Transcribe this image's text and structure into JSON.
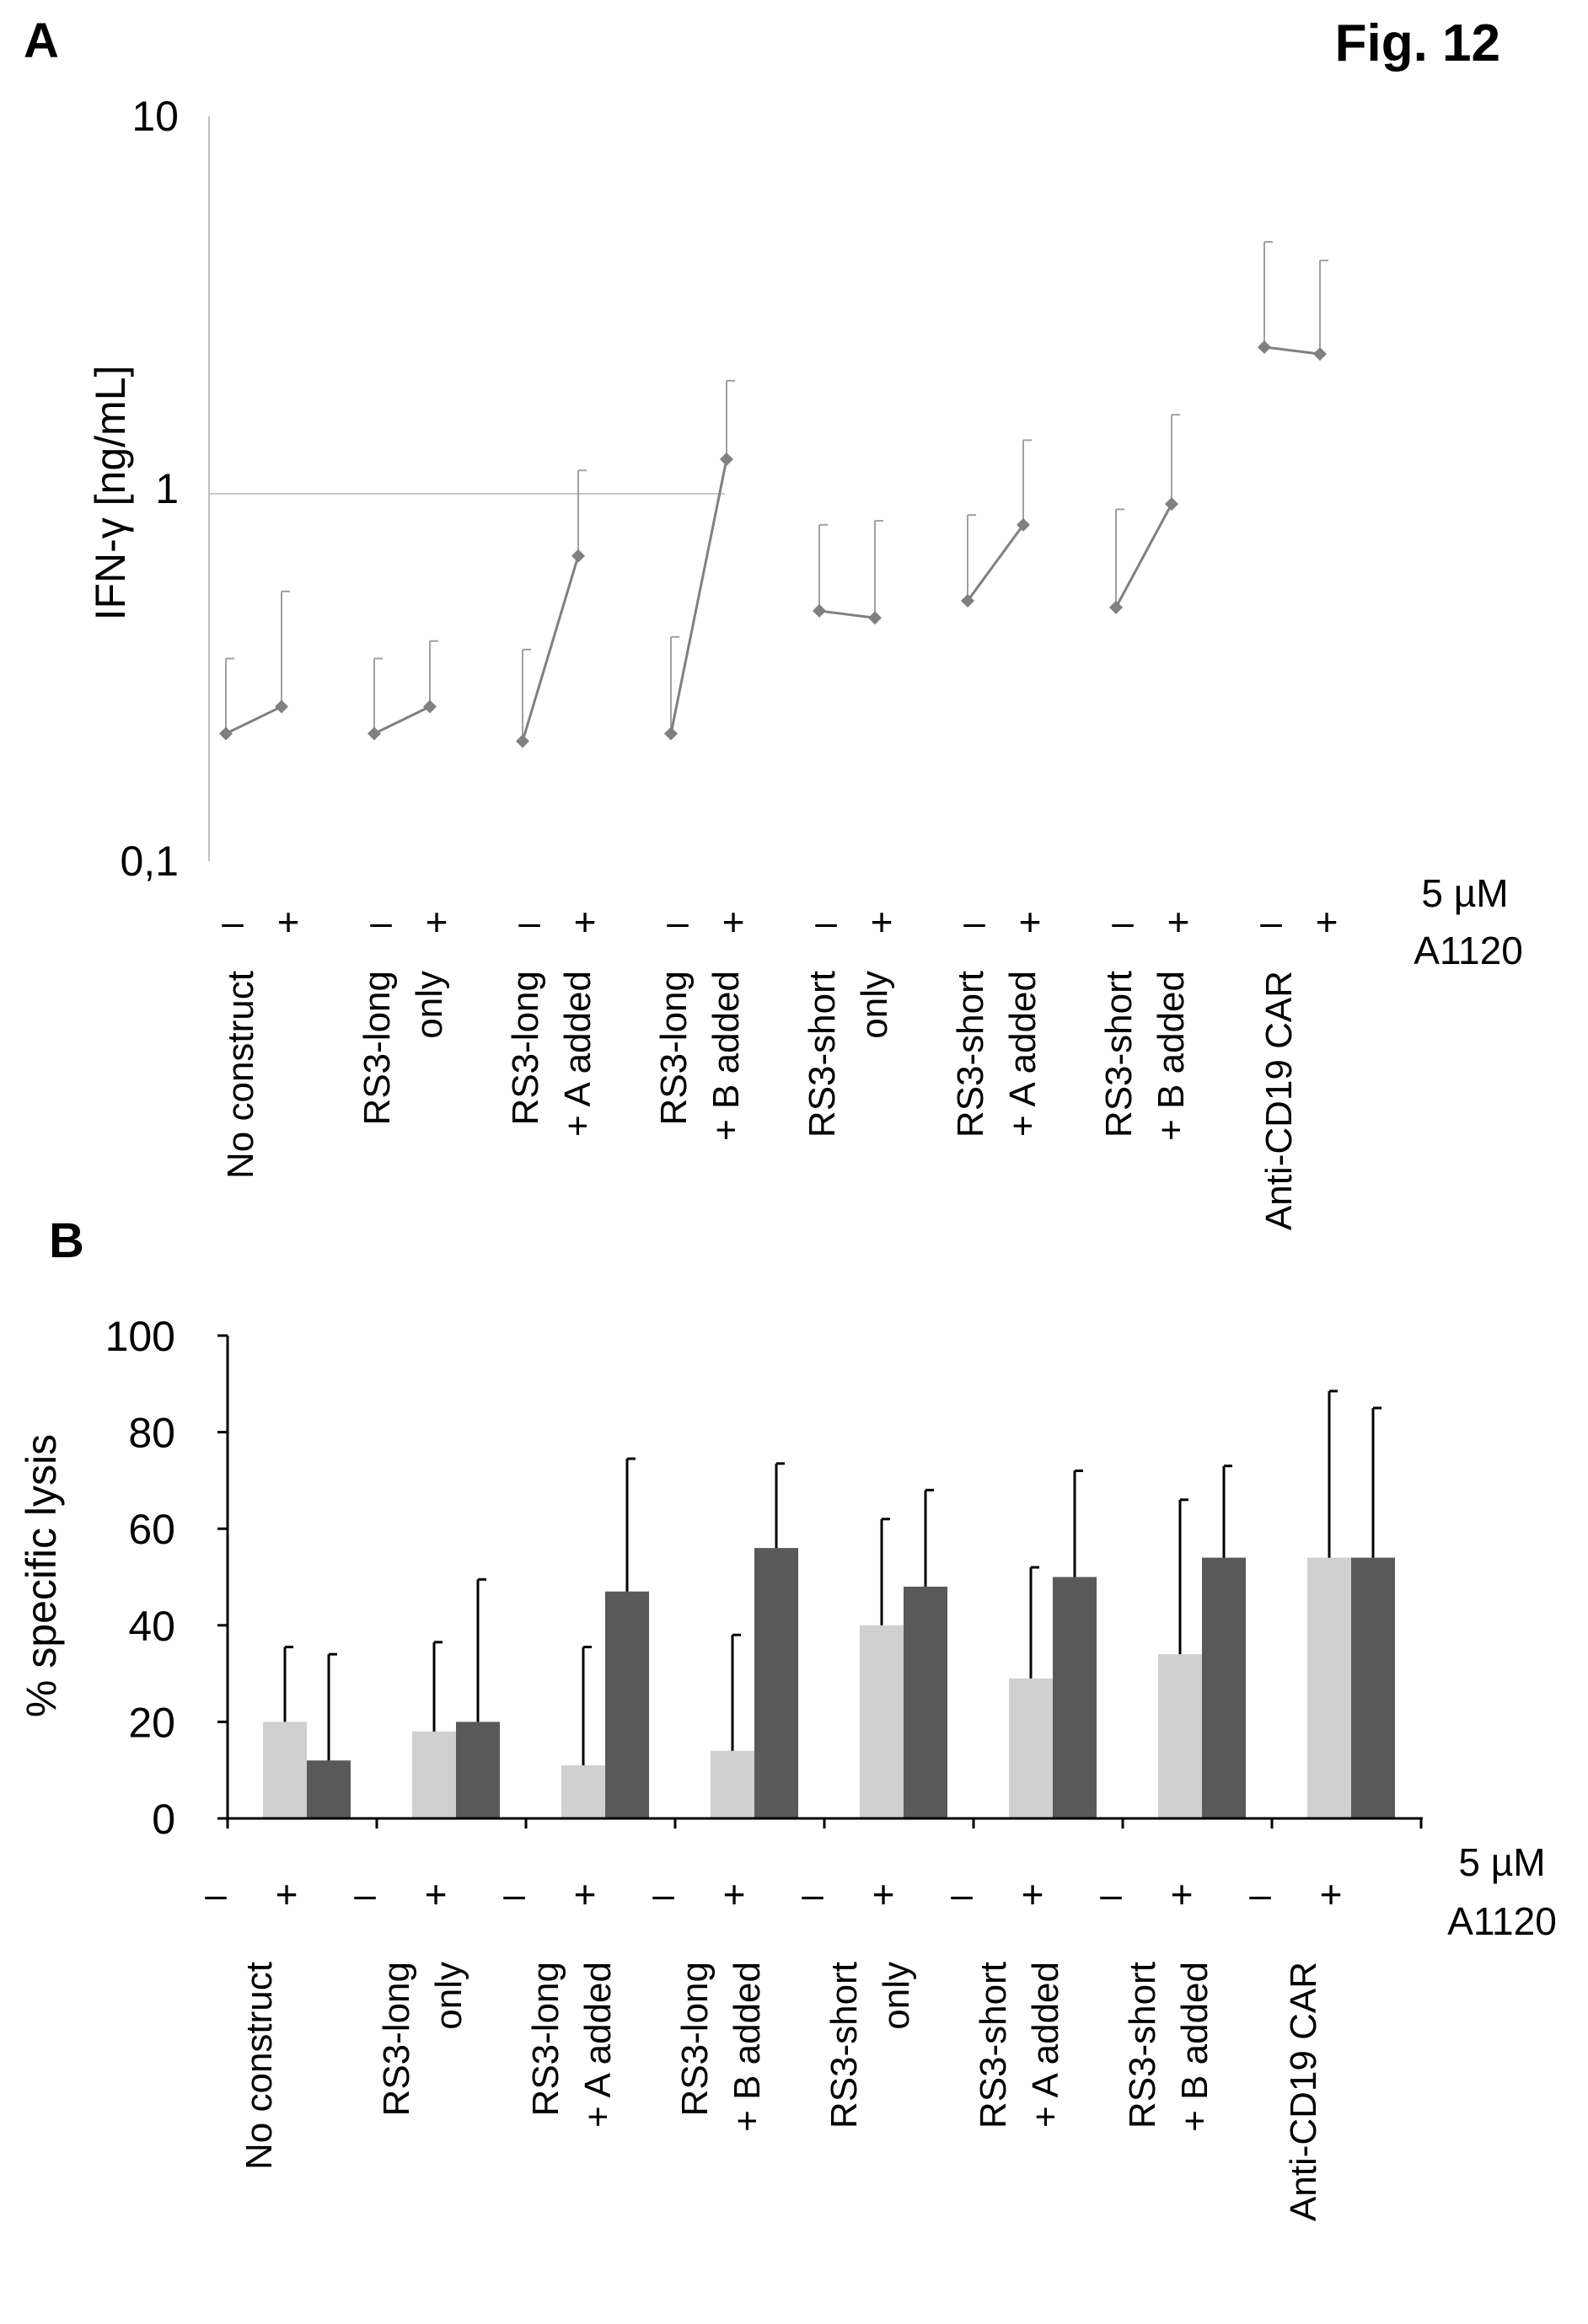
{
  "figure": {
    "title": "Fig. 12",
    "treatment_label": [
      "5 µM",
      "A1120"
    ],
    "minus_sign": "–",
    "plus_sign": "+"
  },
  "chart_data": [
    {
      "panel": "A",
      "type": "line",
      "ylabel": "IFN-γ [ng/mL]",
      "yscale": "log",
      "ylim": [
        0.1,
        10
      ],
      "yticks": [
        "0,1",
        "1",
        "10"
      ],
      "grid": "horizontal at 1",
      "categories": [
        [
          "No construct"
        ],
        [
          "RS3-long",
          "only"
        ],
        [
          "RS3-long",
          "+ A added"
        ],
        [
          "RS3-long",
          "+ B added"
        ],
        [
          "RS3-short",
          "only"
        ],
        [
          "RS3-short",
          "+ A added"
        ],
        [
          "RS3-short",
          "+ B added"
        ],
        [
          "Anti-CD19 CAR"
        ]
      ],
      "series": [
        {
          "values": [
            0.22,
            0.22,
            0.21,
            0.22,
            0.47,
            0.5,
            0.48,
            2.4
          ]
        },
        {
          "values": [
            0.26,
            0.26,
            0.66,
            1.2,
            0.45,
            0.8,
            0.91,
            2.3
          ]
        }
      ],
      "error_upper": [
        [
          0.35,
          0.35,
          0.37,
          0.4,
          0.8,
          0.85,
          0.88,
          4.6
        ],
        [
          0.53,
          0.39,
          1.12,
          1.95,
          0.82,
          1.35,
          1.58,
          4.1
        ]
      ],
      "colors": {
        "marker": "#808080",
        "error": "#a0a0a0",
        "grid": "#c8c8c8",
        "axis": "#c0c0c0"
      }
    },
    {
      "panel": "B",
      "type": "bar",
      "ylabel": "% specific lysis",
      "ylim": [
        0,
        100
      ],
      "yticks": [
        "0",
        "20",
        "40",
        "60",
        "80",
        "100"
      ],
      "categories": [
        [
          "No construct"
        ],
        [
          "RS3-long",
          "only"
        ],
        [
          "RS3-long",
          "+ A added"
        ],
        [
          "RS3-long",
          "+ B added"
        ],
        [
          "RS3-short",
          "only"
        ],
        [
          "RS3-short",
          "+ A added"
        ],
        [
          "RS3-short",
          "+ B added"
        ],
        [
          "Anti-CD19 CAR"
        ]
      ],
      "series": [
        {
          "values": [
            20,
            18,
            11,
            14,
            40,
            29,
            34,
            54
          ],
          "color": "#d0d0d0"
        },
        {
          "values": [
            12,
            20,
            47,
            56,
            48,
            50,
            54,
            54
          ],
          "color": "#595959"
        }
      ],
      "error_upper": [
        [
          35.5,
          36.5,
          35.5,
          38,
          62,
          52,
          66,
          88.5
        ],
        [
          34,
          49.5,
          74.5,
          73.5,
          68,
          72,
          73,
          85
        ]
      ]
    }
  ]
}
